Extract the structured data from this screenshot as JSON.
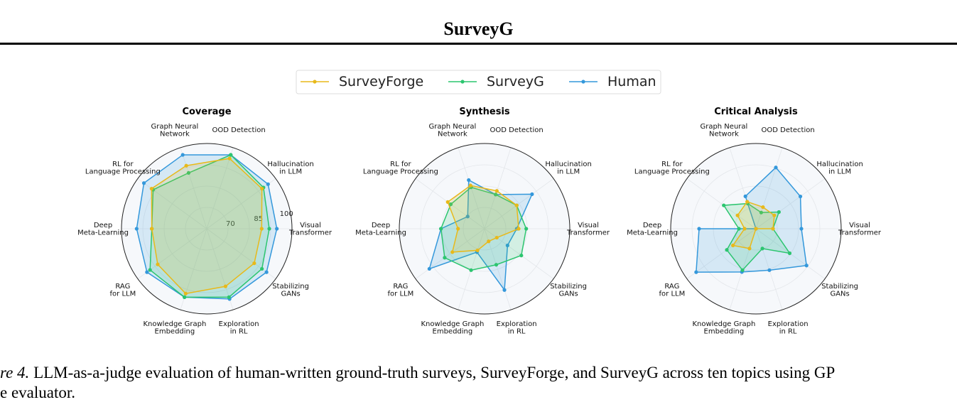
{
  "header": {
    "title": "SurveyG"
  },
  "caption": {
    "line1_label": "re 4.",
    "line1_text": " LLM-as-a-judge evaluation of human-written ground-truth surveys, SurveyForge, and SurveyG across ten topics using GP",
    "line2_text": "e evaluator."
  },
  "legend": {
    "placement": "top-center",
    "entries": [
      {
        "name": "SurveyForge",
        "color": "#E8B91A"
      },
      {
        "name": "SurveyG",
        "color": "#2CC56F"
      },
      {
        "name": "Human",
        "color": "#3498DB"
      }
    ]
  },
  "colors": {
    "surveyforge": "#E8B91A",
    "surveyg": "#2CC56F",
    "human": "#3498DB"
  },
  "chart_data": [
    {
      "type": "radar",
      "title": "Coverage",
      "categories": [
        "OOD Detection",
        "Hallucination\nin LLM",
        "Visual\nTransformer",
        "Stabilizing\nGANs",
        "Exploration\nin RL",
        "Knowledge Graph\nEmbedding",
        "RAG\nfor LLM",
        "Deep\nMeta-Learning",
        "RL for\nLanguage Processing",
        "Graph Neural\nNetwork"
      ],
      "rlim": [
        55,
        100
      ],
      "rticks": [
        70,
        85,
        100
      ],
      "grid": true,
      "series": [
        {
          "name": "SurveyForge",
          "values": [
            94,
            91,
            84,
            86,
            87,
            91,
            87,
            84,
            91,
            90
          ]
        },
        {
          "name": "SurveyG",
          "values": [
            96,
            92,
            88,
            91,
            93,
            93,
            92,
            84,
            90,
            86
          ]
        },
        {
          "name": "Human",
          "values": [
            96,
            95,
            92,
            94,
            94,
            93,
            94,
            92,
            96,
            96
          ]
        }
      ]
    },
    {
      "type": "radar",
      "title": "Synthesis",
      "categories": [
        "OOD Detection",
        "Hallucination\nin LLM",
        "Visual\nTransformer",
        "Stabilizing\nGANs",
        "Exploration\nin RL",
        "Knowledge Graph\nEmbedding",
        "RAG\nfor LLM",
        "Deep\nMeta-Learning",
        "RL for\nLanguage Processing",
        "Graph Neural\nNetwork"
      ],
      "rlim": [
        55,
        100
      ],
      "rticks": [],
      "grid": true,
      "series": [
        {
          "name": "SurveyForge",
          "values": [
            76,
            76,
            73,
            63,
            62,
            67,
            76,
            69,
            79,
            79
          ]
        },
        {
          "name": "SurveyG",
          "values": [
            74,
            76,
            77,
            79,
            75,
            78,
            81,
            78,
            77,
            78
          ]
        },
        {
          "name": "Human",
          "values": [
            74,
            86,
            72,
            70,
            89,
            68,
            91,
            78,
            66,
            82
          ]
        }
      ]
    },
    {
      "type": "radar",
      "title": "Critical Analysis",
      "categories": [
        "OOD Detection",
        "Hallucination\nin LLM",
        "Visual\nTransformer",
        "Stabilizing\nGANs",
        "Exploration\nin RL",
        "Knowledge Graph\nEmbedding",
        "RAG\nfor LLM",
        "Deep\nMeta-Learning",
        "RL for\nLanguage Processing",
        "Graph Neural\nNetwork"
      ],
      "rlim": [
        55,
        100
      ],
      "rticks": [],
      "grid": true,
      "series": [
        {
          "name": "SurveyForge",
          "values": [
            67,
            67,
            64,
            55,
            55,
            66,
            70,
            61,
            67,
            70
          ]
        },
        {
          "name": "SurveyG",
          "values": [
            64,
            70,
            64,
            77,
            66,
            78,
            74,
            64,
            76,
            69
          ]
        },
        {
          "name": "Human",
          "values": [
            89,
            84,
            79,
            88,
            78,
            79,
            94,
            85,
            55,
            73
          ]
        }
      ]
    }
  ]
}
